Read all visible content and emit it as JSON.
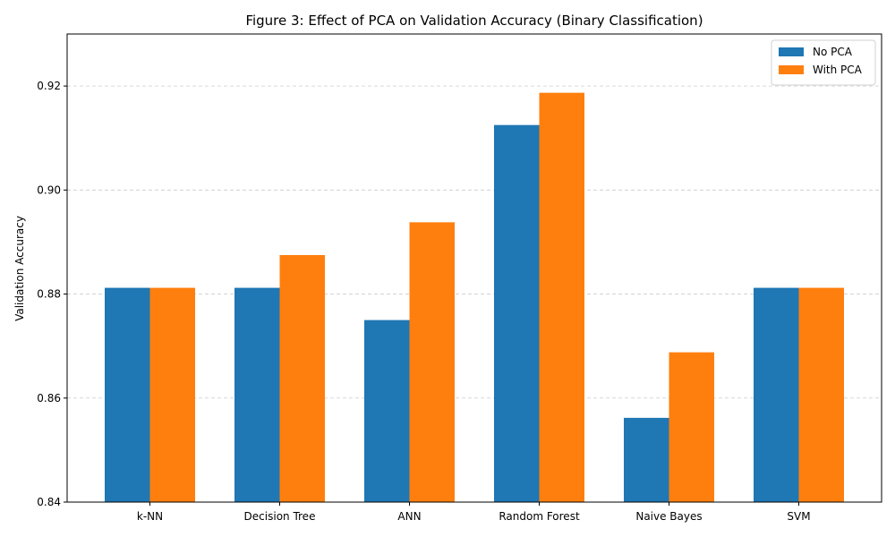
{
  "chart_data": {
    "type": "bar",
    "title": "Figure 3: Effect of PCA on Validation Accuracy (Binary Classification)",
    "xlabel": "",
    "ylabel": "Validation Accuracy",
    "ylim": [
      0.84,
      0.93
    ],
    "yticks": [
      0.84,
      0.86,
      0.88,
      0.9,
      0.92
    ],
    "ytick_labels": [
      "0.84",
      "0.86",
      "0.88",
      "0.90",
      "0.92"
    ],
    "grid": "y, dashed",
    "legend_position": "top-right",
    "categories": [
      "k-NN",
      "Decision Tree",
      "ANN",
      "Random Forest",
      "Naive Bayes",
      "SVM"
    ],
    "series": [
      {
        "name": "No PCA",
        "color": "#1f77b4",
        "values": [
          0.8812,
          0.8812,
          0.875,
          0.9125,
          0.8562,
          0.8812
        ]
      },
      {
        "name": "With PCA",
        "color": "#ff7f0e",
        "values": [
          0.8812,
          0.8875,
          0.8938,
          0.9187,
          0.8688,
          0.8812
        ]
      }
    ]
  }
}
